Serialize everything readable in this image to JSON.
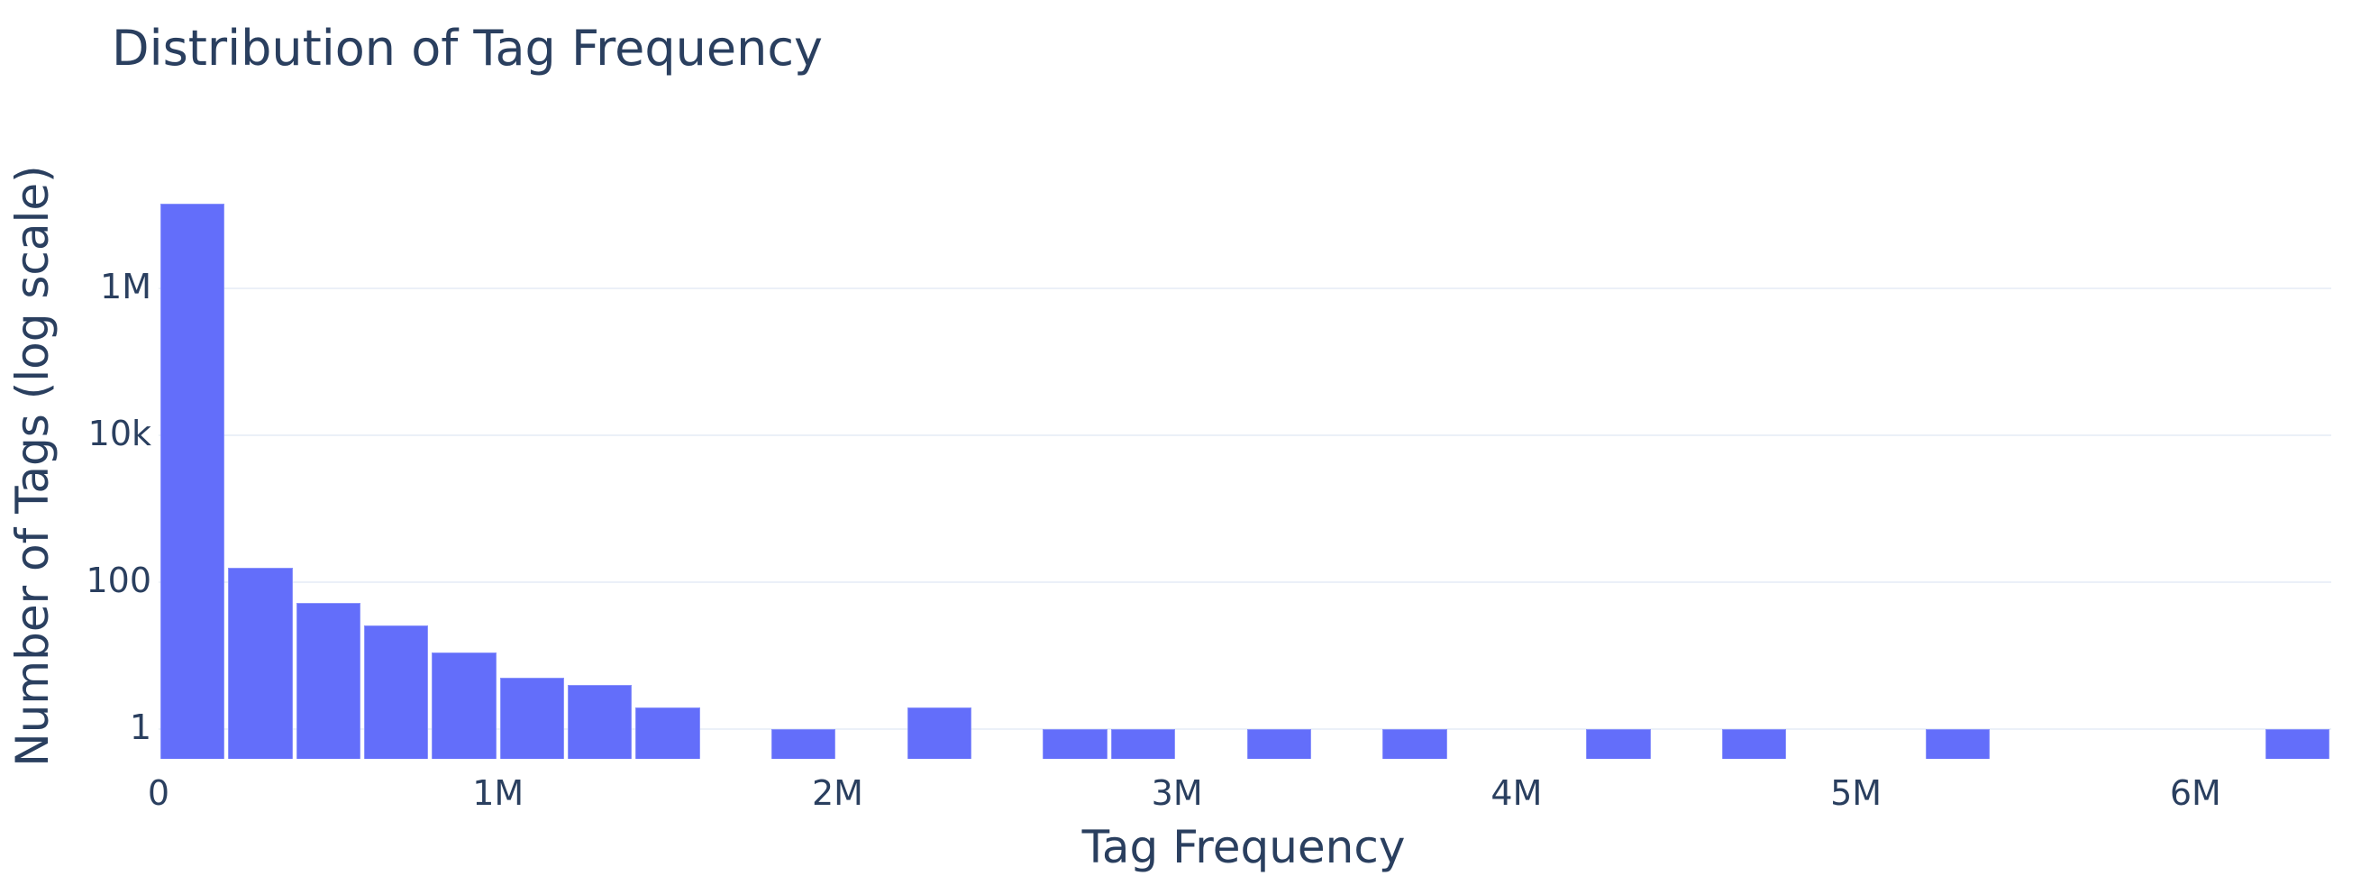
{
  "chart_data": {
    "type": "bar",
    "subtype": "histogram",
    "title": "Distribution of Tag Frequency",
    "xlabel": "Tag Frequency",
    "ylabel": "Number of Tags (log scale)",
    "y_scale": "log",
    "bin_size": 200000,
    "xlim": [
      0,
      6400000
    ],
    "ylim_log10": [
      -0.4,
      7.47
    ],
    "x_ticks": [
      {
        "value": 0,
        "label": "0"
      },
      {
        "value": 1000000,
        "label": "1M"
      },
      {
        "value": 2000000,
        "label": "2M"
      },
      {
        "value": 3000000,
        "label": "3M"
      },
      {
        "value": 4000000,
        "label": "4M"
      },
      {
        "value": 5000000,
        "label": "5M"
      },
      {
        "value": 6000000,
        "label": "6M"
      }
    ],
    "y_ticks": [
      {
        "value": 1,
        "label": "1"
      },
      {
        "value": 100,
        "label": "100"
      },
      {
        "value": 10000,
        "label": "10k"
      },
      {
        "value": 1000000,
        "label": "1M"
      }
    ],
    "grid": true,
    "legend": "none",
    "bins": [
      {
        "start": 0,
        "end": 200000,
        "count": 14000000
      },
      {
        "start": 200000,
        "end": 400000,
        "count": 160
      },
      {
        "start": 400000,
        "end": 600000,
        "count": 52
      },
      {
        "start": 600000,
        "end": 800000,
        "count": 26
      },
      {
        "start": 800000,
        "end": 1000000,
        "count": 11
      },
      {
        "start": 1000000,
        "end": 1200000,
        "count": 5
      },
      {
        "start": 1200000,
        "end": 1400000,
        "count": 4
      },
      {
        "start": 1400000,
        "end": 1600000,
        "count": 2
      },
      {
        "start": 1800000,
        "end": 2000000,
        "count": 1
      },
      {
        "start": 2200000,
        "end": 2400000,
        "count": 2
      },
      {
        "start": 2600000,
        "end": 2800000,
        "count": 1
      },
      {
        "start": 2800000,
        "end": 3000000,
        "count": 1
      },
      {
        "start": 3200000,
        "end": 3400000,
        "count": 1
      },
      {
        "start": 3600000,
        "end": 3800000,
        "count": 1
      },
      {
        "start": 4200000,
        "end": 4400000,
        "count": 1
      },
      {
        "start": 4600000,
        "end": 4800000,
        "count": 1
      },
      {
        "start": 5200000,
        "end": 5400000,
        "count": 1
      },
      {
        "start": 6200000,
        "end": 6400000,
        "count": 1
      }
    ],
    "colors": {
      "bar": "#636efa",
      "grid": "#ebf0f8",
      "text": "#2a3f5f"
    }
  }
}
